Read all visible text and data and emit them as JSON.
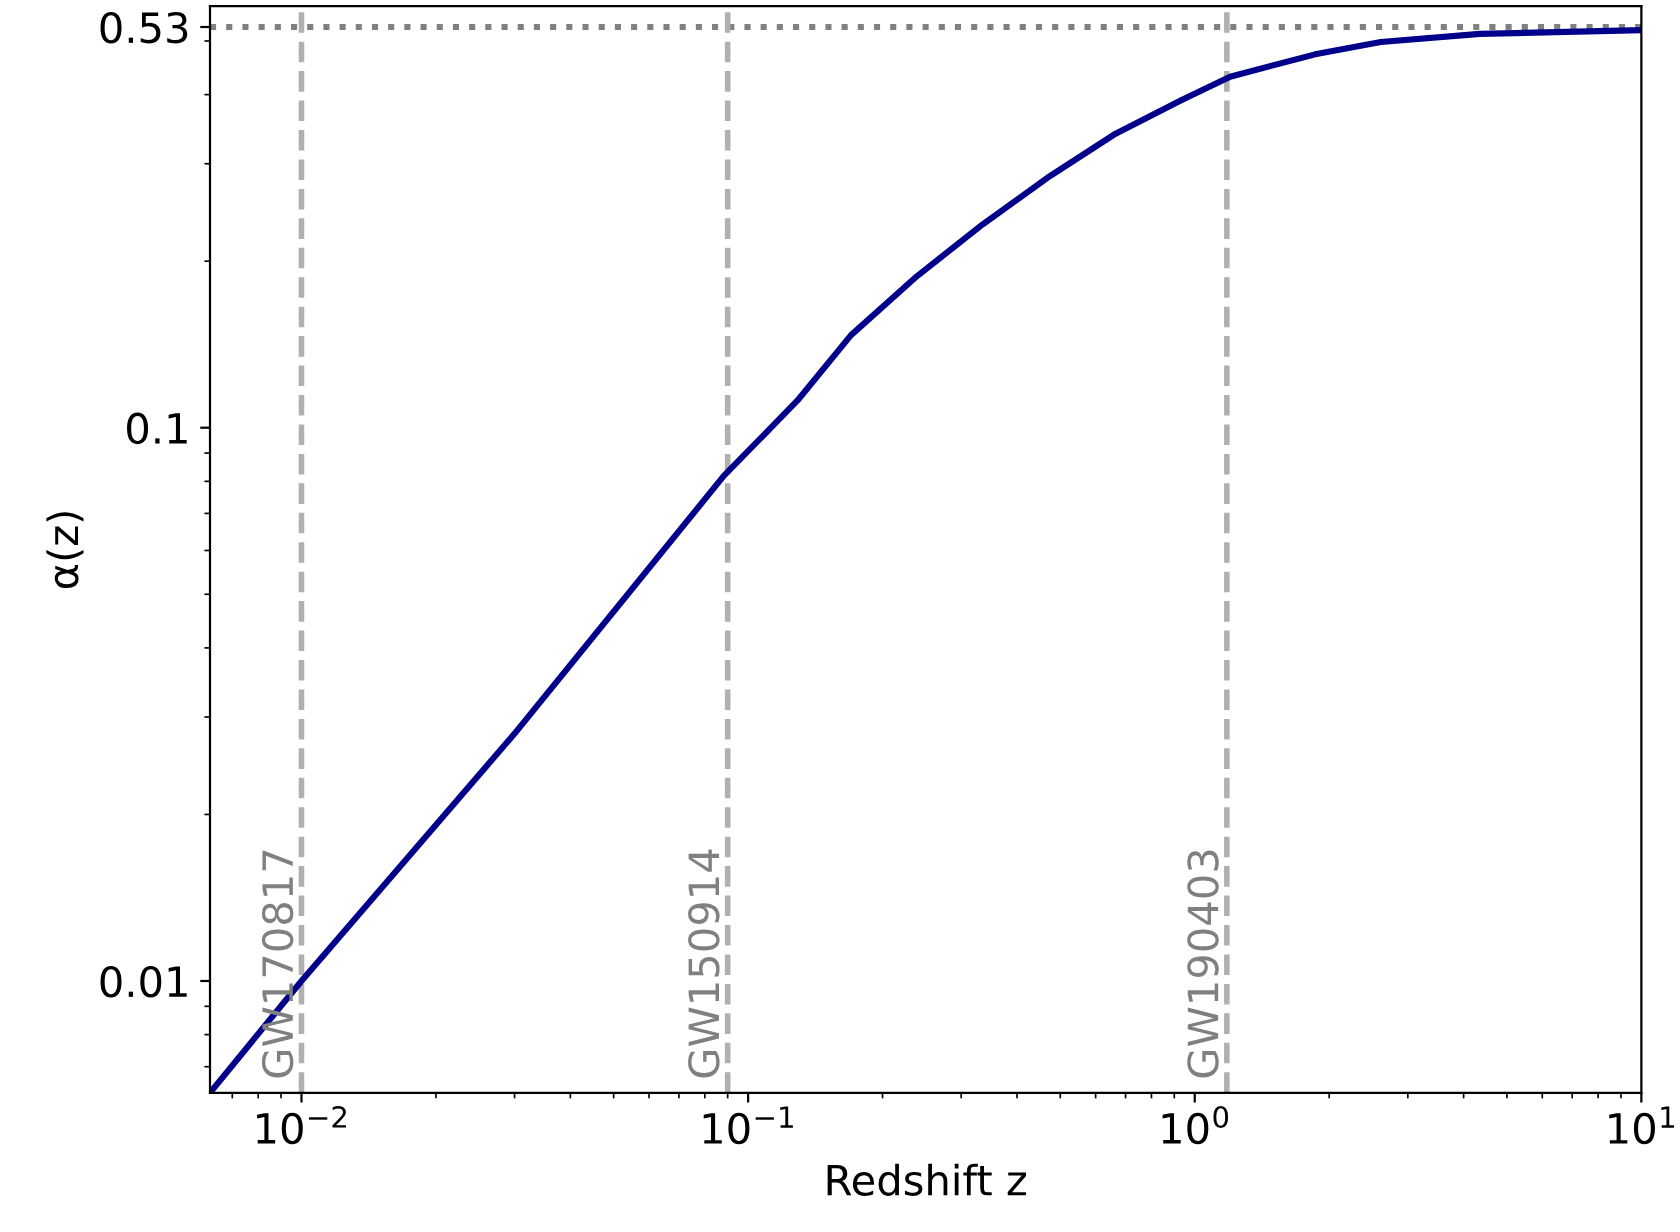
{
  "chart_data": {
    "type": "line",
    "xlabel": "Redshift z",
    "ylabel": "α(z)",
    "log": "xy",
    "x": [
      0.00624,
      0.01,
      0.03,
      0.0883,
      0.129,
      0.17,
      0.239,
      0.335,
      0.474,
      0.665,
      0.935,
      1.2,
      1.86,
      2.61,
      4.35,
      10
    ],
    "series": [
      {
        "color": "#00008b",
        "values": [
          0.00628,
          0.01,
          0.028,
          0.0819,
          0.112,
          0.147,
          0.188,
          0.233,
          0.285,
          0.34,
          0.391,
          0.431,
          0.473,
          0.498,
          0.515,
          0.523
        ]
      }
    ],
    "xlim": [
      0.00624,
      10
    ],
    "ylim": [
      0.00628,
      0.578
    ],
    "xticks": [
      {
        "value": 0.01,
        "label": "10$^{−2}$"
      },
      {
        "value": 0.1,
        "label": "10$^{−1}$"
      },
      {
        "value": 1,
        "label": "10$^{0}$"
      },
      {
        "value": 10,
        "label": "10$^{1}$"
      }
    ],
    "yticks": [
      0.01,
      0.1,
      0.53
    ],
    "ref_lines": [
      {
        "axis": "y",
        "value": 0.53,
        "label": null,
        "color": "#808080",
        "line_style": "dotted"
      },
      {
        "axis": "x",
        "value": 0.01,
        "label": "GW170817",
        "color": "#b0b0b0",
        "line_style": "dashed"
      },
      {
        "axis": "x",
        "value": 0.09,
        "label": "GW150914",
        "color": "#b0b0b0",
        "line_style": "dashed"
      },
      {
        "axis": "x",
        "value": 1.18,
        "label": "GW190403",
        "color": "#b0b0b0",
        "line_style": "dashed"
      }
    ],
    "grid": false,
    "legend": false,
    "marker": "none",
    "line_style": "solid"
  }
}
